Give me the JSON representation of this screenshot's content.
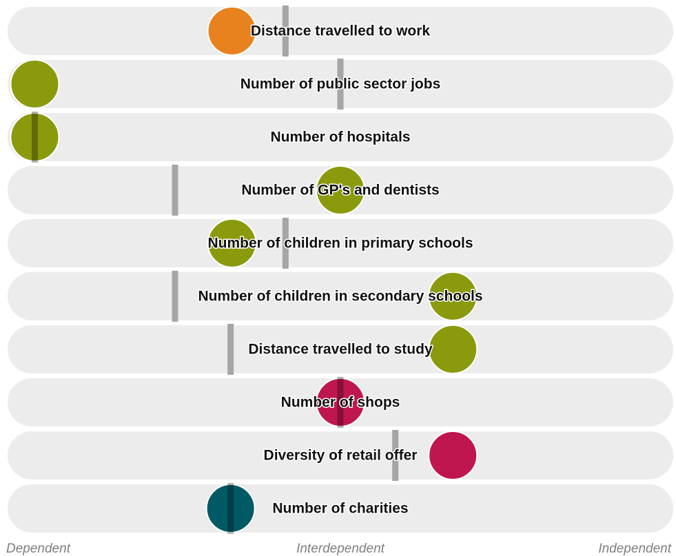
{
  "chart_data": {
    "type": "scatter",
    "title": "",
    "xlim": [
      0,
      100
    ],
    "axis_labels": {
      "left": "Dependent",
      "center": "Interdependent",
      "right": "Independent"
    },
    "category_colors": {
      "orange": "#e8821e",
      "olive": "#8b9a0c",
      "crimson": "#c0164f",
      "teal": "#005a66"
    },
    "rows": [
      {
        "label": "Distance travelled to work",
        "value": 33.6,
        "reference": 41.7,
        "color": "#e8821e"
      },
      {
        "label": "Number of public sector jobs",
        "value": 3.8,
        "reference": 50.0,
        "color": "#8b9a0c"
      },
      {
        "label": "Number of hospitals",
        "value": 3.8,
        "reference": 3.8,
        "color": "#8b9a0c"
      },
      {
        "label": "Number of GP's and dentists",
        "value": 50.0,
        "reference": 25.0,
        "color": "#8b9a0c"
      },
      {
        "label": "Number of children in primary schools",
        "value": 33.6,
        "reference": 41.7,
        "color": "#8b9a0c"
      },
      {
        "label": "Number of children in secondary schools",
        "value": 67.0,
        "reference": 25.0,
        "color": "#8b9a0c"
      },
      {
        "label": "Distance travelled to study",
        "value": 67.0,
        "reference": 33.4,
        "color": "#8b9a0c"
      },
      {
        "label": "Number of shops",
        "value": 50.0,
        "reference": 50.0,
        "color": "#c0164f"
      },
      {
        "label": "Diversity of retail offer",
        "value": 67.0,
        "reference": 58.3,
        "color": "#c0164f"
      },
      {
        "label": "Number of charities",
        "value": 33.4,
        "reference": 33.4,
        "color": "#005a66"
      }
    ]
  }
}
